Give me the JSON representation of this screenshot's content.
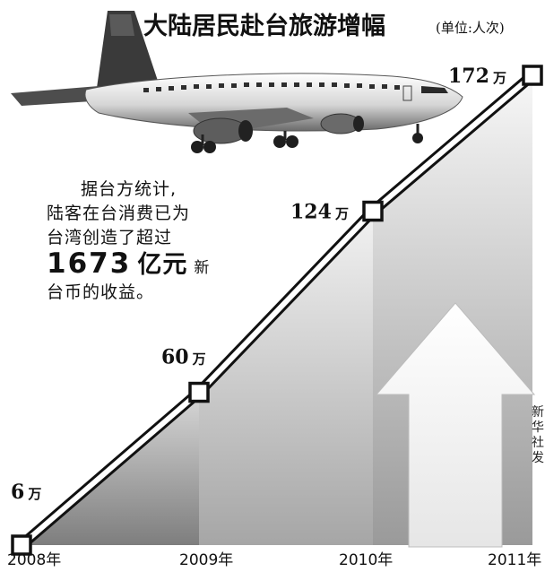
{
  "chart_data": {
    "type": "line",
    "title": "大陆居民赴台旅游增幅",
    "unit_note": "(单位:人次)",
    "categories": [
      "2008年",
      "2009年",
      "2010年",
      "2011年"
    ],
    "values": [
      6,
      60,
      124,
      172
    ],
    "value_labels": [
      "6",
      "60",
      "124",
      "172"
    ],
    "value_unit": "万",
    "ylim": [
      0,
      172
    ],
    "grid": false,
    "legend": "none"
  },
  "note": {
    "line1": "据台方统计,",
    "line2": "陆客在台消费已为",
    "line3": "台湾创造了超过",
    "amount": "1673",
    "amount_unit": "亿元",
    "line4_tail": "新",
    "line5": "台币的收益。"
  },
  "side_credit": "新华社发",
  "icons": {
    "airplane": "airplane-icon",
    "arrow": "up-arrow-icon"
  },
  "colors": {
    "line_outer": "#111111",
    "line_inner": "#ffffff",
    "marker_fill": "#ffffff",
    "gradient_dark": "#8a8a8a",
    "gradient_light": "#f4f4f4"
  }
}
